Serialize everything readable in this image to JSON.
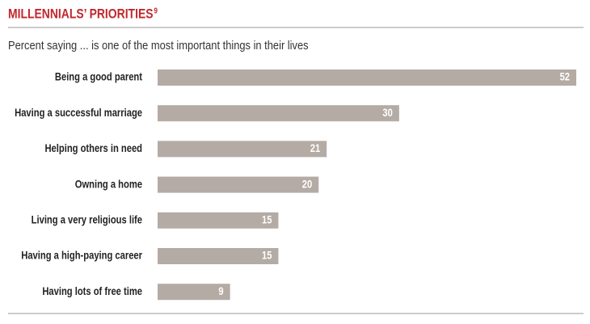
{
  "chart_data": {
    "type": "bar",
    "orientation": "horizontal",
    "title": "MILLENNIALS’ PRIORITIES",
    "title_superscript": "9",
    "subtitle": "Percent saying ... is one of the most important things in their lives",
    "categories": [
      "Being a good parent",
      "Having a successful marriage",
      "Helping others in need",
      "Owning a home",
      "Living a very religious life",
      "Having a high-paying career",
      "Having lots of free time"
    ],
    "values": [
      52,
      30,
      21,
      20,
      15,
      15,
      9
    ],
    "color": "#b4aba4"
  }
}
